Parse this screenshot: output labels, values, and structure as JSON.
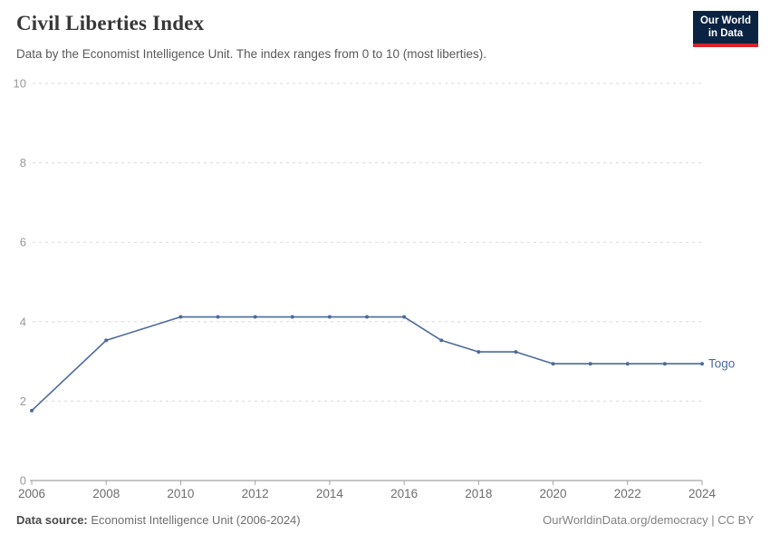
{
  "header": {
    "title": "Civil Liberties Index",
    "subtitle": "Data by the Economist Intelligence Unit. The index ranges from 0 to 10 (most liberties).",
    "logo": {
      "line1": "Our World",
      "line2": "in Data",
      "bg_color": "#0a2342",
      "accent_color": "#d8232a"
    }
  },
  "chart_data": {
    "type": "line",
    "title": "Civil Liberties Index",
    "xlabel": "",
    "ylabel": "",
    "xlim": [
      2006,
      2024
    ],
    "ylim": [
      0,
      10
    ],
    "xticks": [
      2006,
      2008,
      2010,
      2012,
      2014,
      2016,
      2018,
      2020,
      2022,
      2024
    ],
    "yticks": [
      0,
      2,
      4,
      6,
      8,
      10
    ],
    "grid": "horizontal-dashed",
    "legend_position": "line-end",
    "series": [
      {
        "name": "Togo",
        "color": "#4c6a9c",
        "x": [
          2006,
          2008,
          2010,
          2011,
          2012,
          2013,
          2014,
          2015,
          2016,
          2017,
          2018,
          2019,
          2020,
          2021,
          2022,
          2023,
          2024
        ],
        "y": [
          1.76,
          3.53,
          4.12,
          4.12,
          4.12,
          4.12,
          4.12,
          4.12,
          4.12,
          3.53,
          3.24,
          3.24,
          2.94,
          2.94,
          2.94,
          2.94,
          2.94
        ]
      }
    ],
    "style": {
      "grid_color": "#d9d9d9",
      "axis_color": "#a3a3a3",
      "ytick_label_color": "#999999",
      "xtick_label_color": "#6e6e6e"
    }
  },
  "footer": {
    "source_label": "Data source:",
    "source_value": "Economist Intelligence Unit (2006-2024)",
    "attribution": "OurWorldinData.org/democracy | CC BY"
  }
}
